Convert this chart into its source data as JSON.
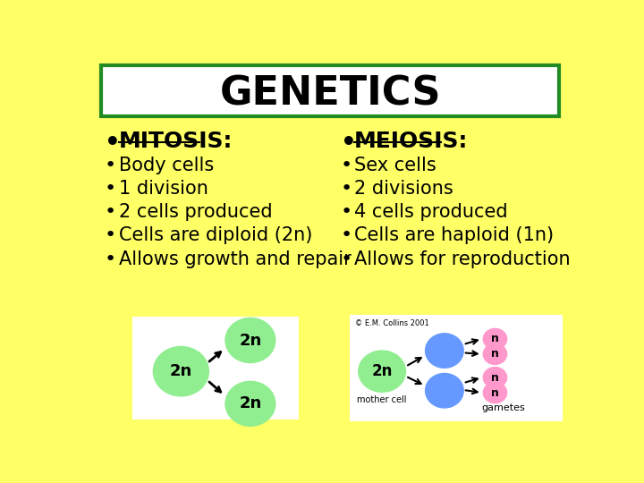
{
  "background_color": "#FFFF66",
  "title": "GENETICS",
  "title_box_color": "#FFFFFF",
  "title_border_color": "#228B22",
  "left_header": "MITOSIS:",
  "right_header": "MEIOSIS:",
  "left_bullets": [
    "Body cells",
    "1 division",
    "2 cells produced",
    "Cells are diploid (2n)",
    "Allows growth and repair"
  ],
  "right_bullets": [
    "Sex cells",
    "2 divisions",
    "4 cells produced",
    "Cells are haploid (1n)",
    "Allows for reproduction"
  ],
  "green_color": "#90EE90",
  "blue_color": "#6699FF",
  "pink_color": "#FF99CC",
  "img_bg_color": "#FFFFFF"
}
